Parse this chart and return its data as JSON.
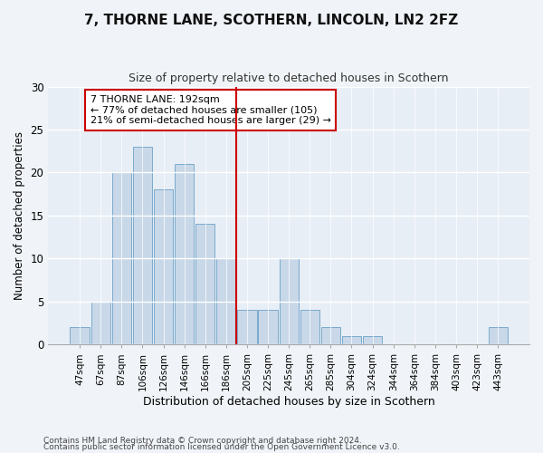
{
  "title": "7, THORNE LANE, SCOTHERN, LINCOLN, LN2 2FZ",
  "subtitle": "Size of property relative to detached houses in Scothern",
  "xlabel": "Distribution of detached houses by size in Scothern",
  "ylabel": "Number of detached properties",
  "bar_color": "#c8d8e8",
  "bar_edge_color": "#7aaacc",
  "categories": [
    "47sqm",
    "67sqm",
    "87sqm",
    "106sqm",
    "126sqm",
    "146sqm",
    "166sqm",
    "186sqm",
    "205sqm",
    "225sqm",
    "245sqm",
    "265sqm",
    "285sqm",
    "304sqm",
    "324sqm",
    "344sqm",
    "364sqm",
    "384sqm",
    "403sqm",
    "423sqm",
    "443sqm"
  ],
  "values": [
    2,
    5,
    20,
    23,
    18,
    21,
    14,
    10,
    4,
    4,
    10,
    4,
    2,
    1,
    1,
    0,
    0,
    0,
    0,
    0,
    2
  ],
  "vline_index": 7,
  "vline_color": "#cc0000",
  "annotation_text": "7 THORNE LANE: 192sqm\n← 77% of detached houses are smaller (105)\n21% of semi-detached houses are larger (29) →",
  "annotation_box_color": "#ffffff",
  "annotation_box_edge": "#cc0000",
  "ylim": [
    0,
    30
  ],
  "yticks": [
    0,
    5,
    10,
    15,
    20,
    25,
    30
  ],
  "footer1": "Contains HM Land Registry data © Crown copyright and database right 2024.",
  "footer2": "Contains public sector information licensed under the Open Government Licence v3.0.",
  "bg_color": "#f0f4f8",
  "plot_bg_color": "#e8eef6"
}
